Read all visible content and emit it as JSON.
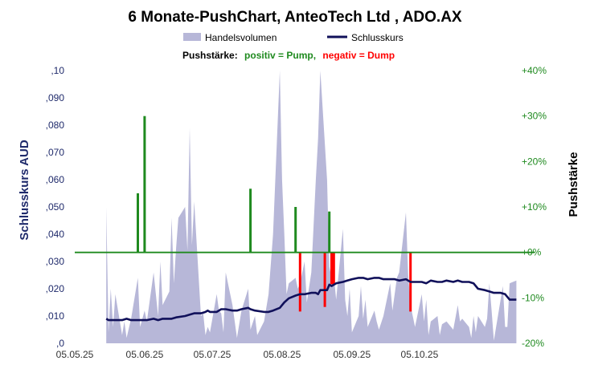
{
  "chart_data": {
    "type": "line",
    "title": "6 Monate-PushChart,  AnteoTech Ltd , ADO.AX",
    "legend": {
      "volume_label": "Handelsvolumen",
      "close_label": "Schlusskurs"
    },
    "push_legend": {
      "prefix": "Pushstärke:",
      "positive": "positiv = Pump,",
      "negative": "negativ = Dump"
    },
    "ylabel_left": "Schlusskurs AUD",
    "ylabel_right": "Pushstärke",
    "y_left_ticks": [
      ",0",
      ",010",
      ",020",
      ",030",
      ",040",
      ",050",
      ",060",
      ",070",
      ",080",
      ",090",
      ",10"
    ],
    "y_left_range": [
      0,
      0.1
    ],
    "y_right_ticks": [
      "-20%",
      "-10%",
      "+0%",
      "+10%",
      "+20%",
      "+30%",
      "+40%"
    ],
    "y_right_range": [
      -20,
      40
    ],
    "x_ticks": [
      {
        "date": "2025-05-05",
        "label": "05.05.25"
      },
      {
        "date": "2025-06-05",
        "label": "05.06.25"
      },
      {
        "date": "2025-07-05",
        "label": "05.07.25"
      },
      {
        "date": "2025-08-05",
        "label": "05.08.25"
      },
      {
        "date": "2025-09-05",
        "label": "05.09.25"
      },
      {
        "date": "2025-10-05",
        "label": "05.10.25"
      }
    ],
    "x_range": [
      "2025-05-05",
      "2025-11-19"
    ],
    "colors": {
      "volume": "#b7b7d8",
      "close": "#10105a",
      "pump": "#1f8a1f",
      "dump": "#ff0000",
      "zero_line": "#1f8a1f",
      "left_axis_text": "#1f2a6b",
      "right_axis_text": "#1f8a1f"
    },
    "series": [
      {
        "name": "Schlusskurs",
        "points": [
          [
            "2025-05-19",
            0.009
          ],
          [
            "2025-05-20",
            0.0085
          ],
          [
            "2025-05-22",
            0.0085
          ],
          [
            "2025-05-26",
            0.0085
          ],
          [
            "2025-05-28",
            0.009
          ],
          [
            "2025-05-30",
            0.0085
          ],
          [
            "2025-06-03",
            0.0085
          ],
          [
            "2025-06-06",
            0.0085
          ],
          [
            "2025-06-09",
            0.009
          ],
          [
            "2025-06-11",
            0.0085
          ],
          [
            "2025-06-13",
            0.009
          ],
          [
            "2025-06-17",
            0.009
          ],
          [
            "2025-06-19",
            0.0095
          ],
          [
            "2025-06-23",
            0.01
          ],
          [
            "2025-06-25",
            0.0105
          ],
          [
            "2025-06-27",
            0.011
          ],
          [
            "2025-06-30",
            0.011
          ],
          [
            "2025-07-02",
            0.0115
          ],
          [
            "2025-07-03",
            0.012
          ],
          [
            "2025-07-04",
            0.0115
          ],
          [
            "2025-07-07",
            0.0115
          ],
          [
            "2025-07-09",
            0.0125
          ],
          [
            "2025-07-11",
            0.0125
          ],
          [
            "2025-07-14",
            0.012
          ],
          [
            "2025-07-16",
            0.012
          ],
          [
            "2025-07-18",
            0.0125
          ],
          [
            "2025-07-21",
            0.013
          ],
          [
            "2025-07-22",
            0.0125
          ],
          [
            "2025-07-24",
            0.012
          ],
          [
            "2025-07-28",
            0.0115
          ],
          [
            "2025-07-30",
            0.0115
          ],
          [
            "2025-08-01",
            0.012
          ],
          [
            "2025-08-04",
            0.013
          ],
          [
            "2025-08-06",
            0.015
          ],
          [
            "2025-08-08",
            0.0165
          ],
          [
            "2025-08-11",
            0.0175
          ],
          [
            "2025-08-13",
            0.018
          ],
          [
            "2025-08-15",
            0.018
          ],
          [
            "2025-08-18",
            0.0185
          ],
          [
            "2025-08-20",
            0.0185
          ],
          [
            "2025-08-21",
            0.018
          ],
          [
            "2025-08-22",
            0.0195
          ],
          [
            "2025-08-25",
            0.0195
          ],
          [
            "2025-08-26",
            0.0215
          ],
          [
            "2025-08-27",
            0.021
          ],
          [
            "2025-08-29",
            0.022
          ],
          [
            "2025-09-01",
            0.0225
          ],
          [
            "2025-09-03",
            0.023
          ],
          [
            "2025-09-05",
            0.0235
          ],
          [
            "2025-09-08",
            0.024
          ],
          [
            "2025-09-10",
            0.024
          ],
          [
            "2025-09-12",
            0.0235
          ],
          [
            "2025-09-15",
            0.024
          ],
          [
            "2025-09-17",
            0.024
          ],
          [
            "2025-09-19",
            0.0235
          ],
          [
            "2025-09-22",
            0.0235
          ],
          [
            "2025-09-24",
            0.0235
          ],
          [
            "2025-09-26",
            0.023
          ],
          [
            "2025-09-29",
            0.0235
          ],
          [
            "2025-10-01",
            0.0225
          ],
          [
            "2025-10-03",
            0.0225
          ],
          [
            "2025-10-06",
            0.0225
          ],
          [
            "2025-10-08",
            0.022
          ],
          [
            "2025-10-10",
            0.023
          ],
          [
            "2025-10-13",
            0.0225
          ],
          [
            "2025-10-15",
            0.0225
          ],
          [
            "2025-10-17",
            0.023
          ],
          [
            "2025-10-20",
            0.0225
          ],
          [
            "2025-10-22",
            0.023
          ],
          [
            "2025-10-24",
            0.0225
          ],
          [
            "2025-10-27",
            0.0225
          ],
          [
            "2025-10-29",
            0.022
          ],
          [
            "2025-10-31",
            0.02
          ],
          [
            "2025-11-03",
            0.0195
          ],
          [
            "2025-11-05",
            0.019
          ],
          [
            "2025-11-07",
            0.0185
          ],
          [
            "2025-11-10",
            0.0185
          ],
          [
            "2025-11-12",
            0.018
          ],
          [
            "2025-11-14",
            0.016
          ],
          [
            "2025-11-17",
            0.016
          ]
        ]
      },
      {
        "name": "Handelsvolumen",
        "points": [
          [
            "2025-05-19",
            0.05
          ],
          [
            "2025-05-20",
            0.004
          ],
          [
            "2025-05-21",
            0.02
          ],
          [
            "2025-05-22",
            0.006
          ],
          [
            "2025-05-23",
            0.018
          ],
          [
            "2025-05-26",
            0.003
          ],
          [
            "2025-05-27",
            0.008
          ],
          [
            "2025-05-28",
            0.002
          ],
          [
            "2025-05-30",
            0.009
          ],
          [
            "2025-06-02",
            0.024
          ],
          [
            "2025-06-03",
            0.006
          ],
          [
            "2025-06-05",
            0.012
          ],
          [
            "2025-06-06",
            0.008
          ],
          [
            "2025-06-09",
            0.026
          ],
          [
            "2025-06-11",
            0.01
          ],
          [
            "2025-06-12",
            0.03
          ],
          [
            "2025-06-13",
            0.014
          ],
          [
            "2025-06-16",
            0.019
          ],
          [
            "2025-06-17",
            0.046
          ],
          [
            "2025-06-18",
            0.022
          ],
          [
            "2025-06-19",
            0.035
          ],
          [
            "2025-06-20",
            0.046
          ],
          [
            "2025-06-23",
            0.05
          ],
          [
            "2025-06-24",
            0.034
          ],
          [
            "2025-06-25",
            0.079
          ],
          [
            "2025-06-26",
            0.036
          ],
          [
            "2025-06-27",
            0.052
          ],
          [
            "2025-06-30",
            0.01
          ],
          [
            "2025-07-01",
            0.011
          ],
          [
            "2025-07-02",
            0.003
          ],
          [
            "2025-07-03",
            0.006
          ],
          [
            "2025-07-04",
            0.004
          ],
          [
            "2025-07-07",
            0.018
          ],
          [
            "2025-07-08",
            0.012
          ],
          [
            "2025-07-09",
            0.011
          ],
          [
            "2025-07-10",
            0.004
          ],
          [
            "2025-07-11",
            0.026
          ],
          [
            "2025-07-14",
            0.014
          ],
          [
            "2025-07-16",
            0.002
          ],
          [
            "2025-07-18",
            0.012
          ],
          [
            "2025-07-21",
            0.02
          ],
          [
            "2025-07-22",
            0.005
          ],
          [
            "2025-07-24",
            0.01
          ],
          [
            "2025-07-25",
            0.003
          ],
          [
            "2025-07-28",
            0.008
          ],
          [
            "2025-07-30",
            0.018
          ],
          [
            "2025-08-01",
            0.04
          ],
          [
            "2025-08-04",
            0.1
          ],
          [
            "2025-08-05",
            0.06
          ],
          [
            "2025-08-06",
            0.04
          ],
          [
            "2025-08-07",
            0.018
          ],
          [
            "2025-08-08",
            0.022
          ],
          [
            "2025-08-11",
            0.024
          ],
          [
            "2025-08-12",
            0.02
          ],
          [
            "2025-08-13",
            0.022
          ],
          [
            "2025-08-15",
            0.03
          ],
          [
            "2025-08-16",
            0.015
          ],
          [
            "2025-08-18",
            0.026
          ],
          [
            "2025-08-20",
            0.06
          ],
          [
            "2025-08-21",
            0.075
          ],
          [
            "2025-08-22",
            0.1
          ],
          [
            "2025-08-25",
            0.06
          ],
          [
            "2025-08-26",
            0.028
          ],
          [
            "2025-08-27",
            0.024
          ],
          [
            "2025-08-28",
            0.025
          ],
          [
            "2025-08-29",
            0.016
          ],
          [
            "2025-09-01",
            0.042
          ],
          [
            "2025-09-02",
            0.016
          ],
          [
            "2025-09-03",
            0.01
          ],
          [
            "2025-09-04",
            0.02
          ],
          [
            "2025-09-05",
            0.004
          ],
          [
            "2025-09-08",
            0.01
          ],
          [
            "2025-09-09",
            0.021
          ],
          [
            "2025-09-10",
            0.009
          ],
          [
            "2025-09-11",
            0.016
          ],
          [
            "2025-09-12",
            0.006
          ],
          [
            "2025-09-15",
            0.012
          ],
          [
            "2025-09-16",
            0.008
          ],
          [
            "2025-09-17",
            0.005
          ],
          [
            "2025-09-19",
            0.01
          ],
          [
            "2025-09-22",
            0.022
          ],
          [
            "2025-09-23",
            0.012
          ],
          [
            "2025-09-24",
            0.018
          ],
          [
            "2025-09-25",
            0.024
          ],
          [
            "2025-09-26",
            0.026
          ],
          [
            "2025-09-29",
            0.048
          ],
          [
            "2025-09-30",
            0.025
          ],
          [
            "2025-10-01",
            0.014
          ],
          [
            "2025-10-02",
            0.01
          ],
          [
            "2025-10-03",
            0.006
          ],
          [
            "2025-10-06",
            0.018
          ],
          [
            "2025-10-07",
            0.008
          ],
          [
            "2025-10-08",
            0.016
          ],
          [
            "2025-10-09",
            0.003
          ],
          [
            "2025-10-10",
            0.008
          ],
          [
            "2025-10-13",
            0.01
          ],
          [
            "2025-10-14",
            0.003
          ],
          [
            "2025-10-15",
            0.007
          ],
          [
            "2025-10-17",
            0.008
          ],
          [
            "2025-10-20",
            0.005
          ],
          [
            "2025-10-22",
            0.014
          ],
          [
            "2025-10-23",
            0.008
          ],
          [
            "2025-10-24",
            0.009
          ],
          [
            "2025-10-27",
            0.006
          ],
          [
            "2025-10-28",
            0.002
          ],
          [
            "2025-10-29",
            0.01
          ],
          [
            "2025-10-30",
            0.004
          ],
          [
            "2025-10-31",
            0.01
          ],
          [
            "2025-11-03",
            0.006
          ],
          [
            "2025-11-04",
            0.009
          ],
          [
            "2025-11-05",
            0.022
          ],
          [
            "2025-11-06",
            0.012
          ],
          [
            "2025-11-07",
            0.001
          ],
          [
            "2025-11-10",
            0.016
          ],
          [
            "2025-11-11",
            0.021
          ],
          [
            "2025-11-12",
            0.006
          ],
          [
            "2025-11-13",
            0.006
          ],
          [
            "2025-11-14",
            0.022
          ],
          [
            "2025-11-17",
            0.023
          ]
        ]
      },
      {
        "name": "Pushstärke",
        "points": [
          [
            "2025-06-02",
            13
          ],
          [
            "2025-06-05",
            30
          ],
          [
            "2025-07-22",
            14
          ],
          [
            "2025-08-11",
            10
          ],
          [
            "2025-08-13",
            -13
          ],
          [
            "2025-08-24",
            -12
          ],
          [
            "2025-08-26",
            9
          ],
          [
            "2025-08-27",
            -7
          ],
          [
            "2025-08-28",
            -7
          ],
          [
            "2025-10-01",
            -13
          ]
        ]
      }
    ]
  }
}
